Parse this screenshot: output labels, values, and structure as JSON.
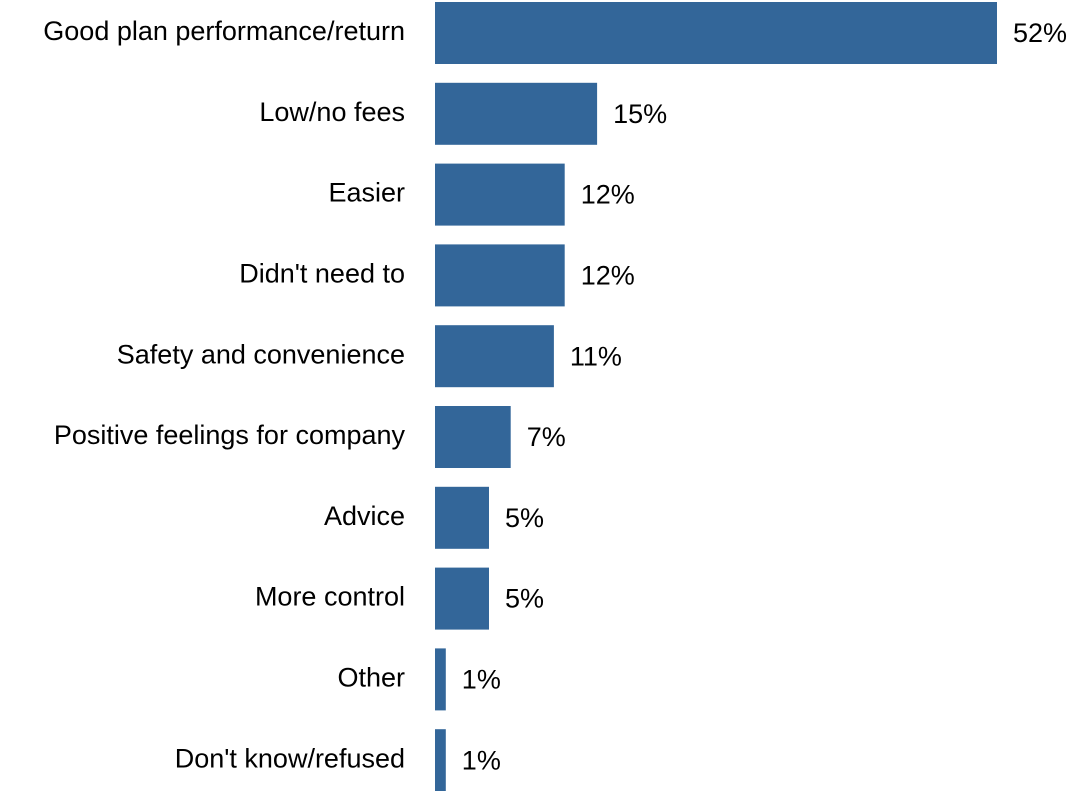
{
  "chart_data": {
    "type": "bar",
    "orientation": "horizontal",
    "categories": [
      "Good plan performance/return",
      "Low/no fees",
      "Easier",
      "Didn't need to",
      "Safety and convenience",
      "Positive feelings for company",
      "Advice",
      "More control",
      "Other",
      "Don't know/refused"
    ],
    "values": [
      52,
      15,
      12,
      12,
      11,
      7,
      5,
      5,
      1,
      1
    ],
    "value_labels": [
      "52%",
      "15%",
      "12%",
      "12%",
      "11%",
      "7%",
      "5%",
      "5%",
      "1%",
      "1%"
    ],
    "unit": "%",
    "title": "",
    "xlabel": "",
    "ylabel": "",
    "xlim": [
      0,
      52
    ],
    "grid": false,
    "legend": "none",
    "bar_color": "#336699"
  }
}
